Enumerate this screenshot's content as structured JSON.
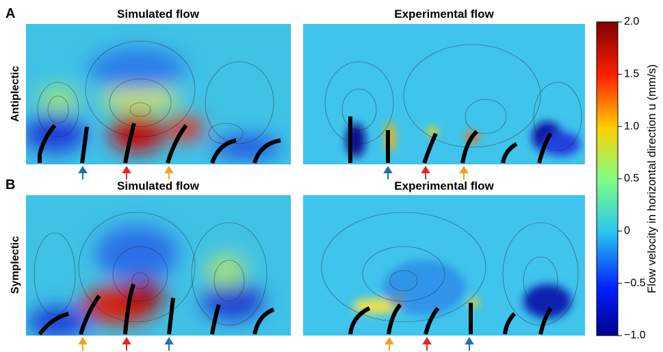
{
  "panels": [
    {
      "letter": "A",
      "row_label": "Antiplectic",
      "left_title": "Simulated flow",
      "right_title": "Experimental flow"
    },
    {
      "letter": "B",
      "row_label": "Symplectic",
      "left_title": "Simulated flow",
      "right_title": "Experimental flow"
    }
  ],
  "colorbar": {
    "label": "Flow velocity in horizontal direction u (mm/s)",
    "range": [
      -1,
      2
    ],
    "ticks": [
      {
        "value": 2,
        "label": "2.0"
      },
      {
        "value": 1.5,
        "label": "1.5"
      },
      {
        "value": 1,
        "label": "1.0"
      },
      {
        "value": 0.5,
        "label": "0.5"
      },
      0,
      {
        "value": -0.5,
        "label": "−0.5"
      },
      {
        "value": -1,
        "label": "−1.0"
      }
    ]
  }
}
